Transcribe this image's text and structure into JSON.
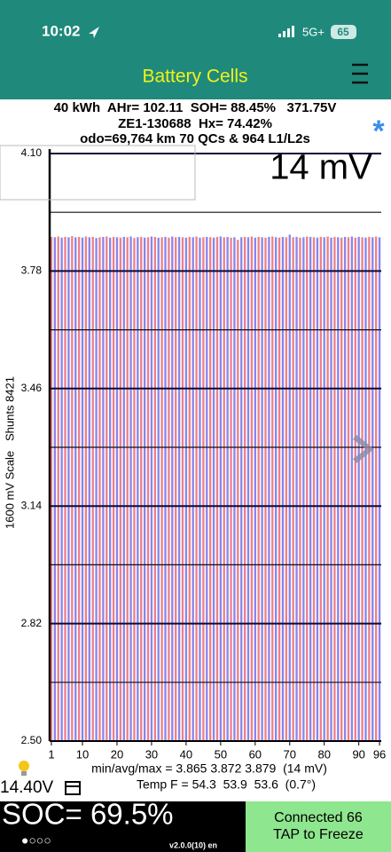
{
  "status_bar": {
    "time": "10:02",
    "network": "5G+",
    "battery": "65"
  },
  "header": {
    "title": "Battery Cells"
  },
  "info": {
    "line1": "40 kWh  AHr= 102.11  SOH= 88.45%   371.75V",
    "line2": "ZE1-130688  Hx= 74.42%",
    "line3": "odo=69,764 km 70 QCs & 964 L1/L2s",
    "asterisk": "*"
  },
  "chart_data": {
    "type": "bar",
    "annotation": "14 mV",
    "y_label": "1600 mV Scale   Shunts 8421",
    "categories": [
      "1",
      null,
      null,
      null,
      null,
      null,
      null,
      null,
      null,
      "10",
      null,
      null,
      null,
      null,
      null,
      null,
      null,
      null,
      null,
      "20",
      null,
      null,
      null,
      null,
      null,
      null,
      null,
      null,
      null,
      "30",
      null,
      null,
      null,
      null,
      null,
      null,
      null,
      null,
      null,
      "40",
      null,
      null,
      null,
      null,
      null,
      null,
      null,
      null,
      null,
      "50",
      null,
      null,
      null,
      null,
      null,
      null,
      null,
      null,
      null,
      "60",
      null,
      null,
      null,
      null,
      null,
      null,
      null,
      null,
      null,
      "70",
      null,
      null,
      null,
      null,
      null,
      null,
      null,
      null,
      null,
      "80",
      null,
      null,
      null,
      null,
      null,
      null,
      null,
      null,
      null,
      "90",
      null,
      null,
      null,
      null,
      null,
      "96"
    ],
    "values": [
      3.873,
      3.872,
      3.874,
      3.871,
      3.873,
      3.872,
      3.875,
      3.872,
      3.873,
      3.871,
      3.874,
      3.872,
      3.873,
      3.87,
      3.872,
      3.873,
      3.874,
      3.871,
      3.873,
      3.872,
      3.871,
      3.873,
      3.872,
      3.874,
      3.87,
      3.872,
      3.873,
      3.871,
      3.872,
      3.874,
      3.873,
      3.871,
      3.872,
      3.873,
      3.871,
      3.874,
      3.872,
      3.873,
      3.872,
      3.871,
      3.873,
      3.872,
      3.874,
      3.871,
      3.872,
      3.873,
      3.872,
      3.871,
      3.873,
      3.874,
      3.872,
      3.873,
      3.871,
      3.872,
      3.865,
      3.872,
      3.873,
      3.872,
      3.874,
      3.871,
      3.873,
      3.872,
      3.871,
      3.873,
      3.874,
      3.872,
      3.871,
      3.873,
      3.872,
      3.879,
      3.872,
      3.873,
      3.871,
      3.872,
      3.874,
      3.873,
      3.872,
      3.871,
      3.873,
      3.872,
      3.874,
      3.871,
      3.873,
      3.872,
      3.871,
      3.873,
      3.872,
      3.874,
      3.871,
      3.873,
      3.872,
      3.871,
      3.873,
      3.872,
      3.874,
      3.872
    ],
    "colors": [
      "#ee7f86",
      "#8686ee"
    ],
    "ylim": [
      2.5,
      4.1
    ],
    "yticks": [
      {
        "value": 4.1,
        "label": "4.10"
      },
      3.78,
      3.46,
      3.14,
      2.82,
      {
        "value": 2.5,
        "label": "2.50"
      }
    ],
    "minor_yticks": [
      3.94,
      3.62,
      3.3,
      2.98,
      2.66
    ],
    "grid": true
  },
  "stats": {
    "minavgmax": "min/avg/max = 3.865 3.872 3.879  (14 mV)",
    "temp": "Temp F = 54.3  53.9  53.6  (0.7°)",
    "voltage": "14.40V"
  },
  "footer": {
    "soc": "SOC= 69.5%",
    "dots": "●○○○",
    "version": "v2.0.0(10) en",
    "status_line1": "Connected 66",
    "status_line2": "TAP to Freeze"
  }
}
